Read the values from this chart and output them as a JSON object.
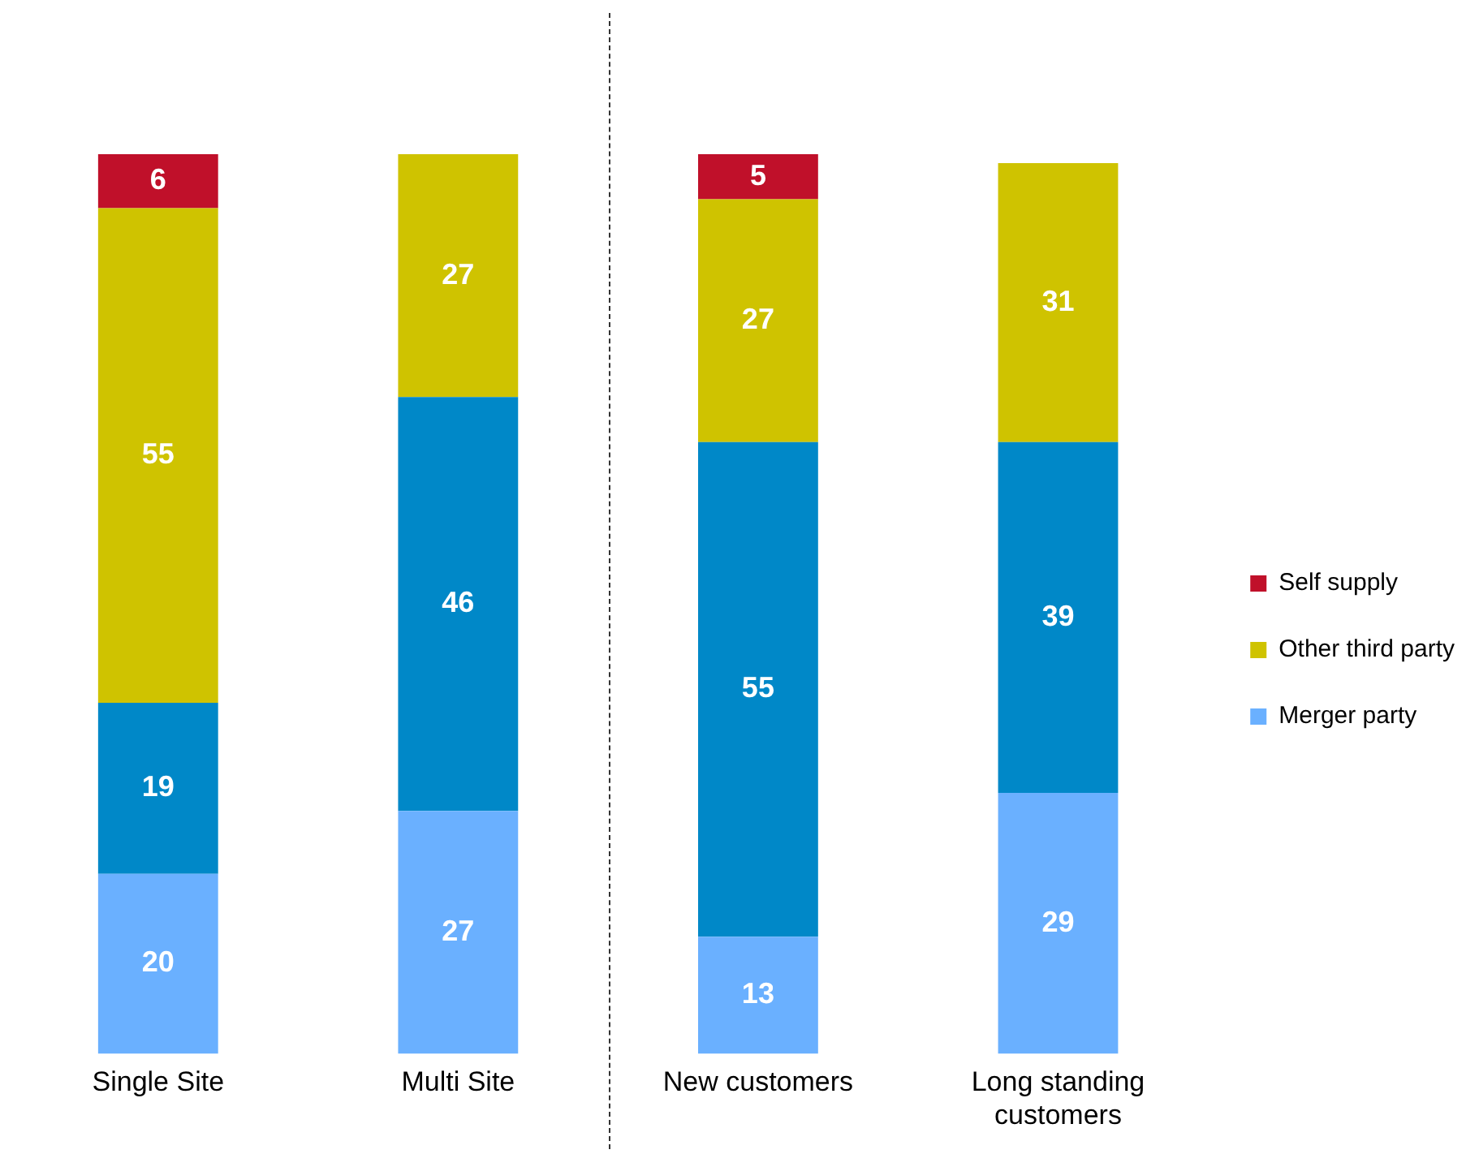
{
  "chart_data": {
    "type": "bar",
    "stacked": true,
    "data_labels": true,
    "legend": "right",
    "grid": false,
    "categories": [
      "Single Site",
      "Multi Site",
      "New customers",
      "Long standing customers"
    ],
    "series": [
      {
        "name": "Merger party",
        "color": "#6ab0ff",
        "values": [
          20,
          27,
          13,
          29
        ]
      },
      {
        "color": "#0088c8",
        "values": [
          19,
          46,
          55,
          39
        ]
      },
      {
        "name": "Other third party",
        "color": "#cfc300",
        "values": [
          55,
          27,
          27,
          31
        ]
      },
      {
        "name": "Self supply",
        "color": "#c0102a",
        "values": [
          6,
          null,
          5,
          null
        ]
      }
    ]
  }
}
